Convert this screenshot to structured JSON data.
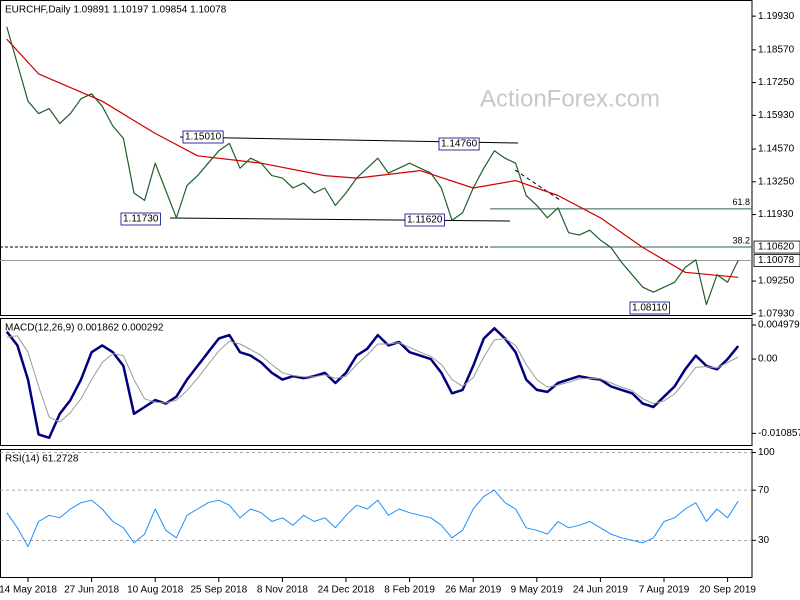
{
  "chart_data": [
    {
      "type": "line",
      "title": "EURCHF,Daily  1.09891 1.10197 1.09854 1.10078",
      "watermark": "ActionForex.com",
      "ylim": [
        1.0784,
        1.2058
      ],
      "yticks": [
        {
          "value": 1.1993,
          "label": "1.19930"
        },
        {
          "value": 1.1857,
          "label": "1.18570"
        },
        {
          "value": 1.1725,
          "label": "1.17250"
        },
        {
          "value": 1.1593,
          "label": "1.15930"
        },
        {
          "value": 1.1457,
          "label": "1.14570"
        },
        {
          "value": 1.1325,
          "label": "1.13250"
        },
        {
          "value": 1.1193,
          "label": "1.11930"
        },
        {
          "value": 1.0925,
          "label": "1.09250"
        },
        {
          "value": 1.0793,
          "label": "1.07930"
        }
      ],
      "series": [
        {
          "color": "#1f5f2a",
          "width": 1.2,
          "values": [
            1.195,
            1.18,
            1.165,
            1.16,
            1.162,
            1.156,
            1.16,
            1.166,
            1.168,
            1.163,
            1.155,
            1.15,
            1.128,
            1.125,
            1.14,
            1.129,
            1.118,
            1.131,
            1.135,
            1.14,
            1.145,
            1.148,
            1.138,
            1.142,
            1.14,
            1.135,
            1.134,
            1.13,
            1.132,
            1.128,
            1.13,
            1.123,
            1.128,
            1.134,
            1.138,
            1.142,
            1.136,
            1.138,
            1.14,
            1.138,
            1.136,
            1.13,
            1.117,
            1.12,
            1.13,
            1.138,
            1.145,
            1.142,
            1.14,
            1.127,
            1.123,
            1.118,
            1.122,
            1.112,
            1.111,
            1.113,
            1.109,
            1.106,
            1.1,
            1.095,
            1.09,
            1.088,
            1.09,
            1.092,
            1.098,
            1.101,
            1.083,
            1.095,
            1.092,
            1.1008
          ]
        },
        {
          "color": "#d00000",
          "width": 1.2,
          "x": [
            0,
            3,
            9,
            14,
            18,
            24,
            30,
            33,
            39,
            44,
            48,
            52,
            56,
            60,
            64,
            69
          ],
          "values": [
            1.19,
            1.176,
            1.165,
            1.152,
            1.143,
            1.14,
            1.135,
            1.134,
            1.137,
            1.13,
            1.133,
            1.127,
            1.118,
            1.106,
            1.096,
            1.094
          ]
        }
      ],
      "levels": [
        {
          "value": 1.1062,
          "label": "1.10620",
          "style": "dashed"
        },
        {
          "value": 1.10078,
          "label": "1.10078",
          "style": "solid"
        }
      ],
      "fib": [
        {
          "value": 1.1216,
          "label": "61.8"
        },
        {
          "value": 1.1062,
          "label": "38.2"
        }
      ],
      "annotations": [
        "1.15010",
        "1.14760",
        "1.11730",
        "1.11620",
        "1.08110"
      ]
    },
    {
      "type": "line",
      "title": "MACD(12,26,9) 0.001862 0.000292",
      "ylim": [
        -0.0127,
        0.006
      ],
      "yticks": [
        0.004979,
        {
          "value": 0,
          "label": "0.00"
        },
        -0.010857
      ],
      "series": [
        {
          "color": "#00007f",
          "width": 2.5,
          "values": [
            0.004,
            0.002,
            -0.003,
            -0.011,
            -0.0115,
            -0.008,
            -0.006,
            -0.003,
            0.001,
            0.002,
            0.001,
            -0.001,
            -0.008,
            -0.007,
            -0.006,
            -0.0065,
            -0.0055,
            -0.003,
            -0.001,
            0.001,
            0.003,
            0.0035,
            0.001,
            0.0005,
            -0.0005,
            -0.002,
            -0.003,
            -0.0025,
            -0.0028,
            -0.0025,
            -0.002,
            -0.0035,
            -0.002,
            0.0005,
            0.0015,
            0.0035,
            0.002,
            0.0025,
            0.001,
            0.0005,
            0.0,
            -0.002,
            -0.005,
            -0.0045,
            -0.001,
            0.003,
            0.0045,
            0.003,
            0.001,
            -0.003,
            -0.0045,
            -0.0048,
            -0.0035,
            -0.003,
            -0.0025,
            -0.0028,
            -0.003,
            -0.004,
            -0.0045,
            -0.005,
            -0.0065,
            -0.007,
            -0.0055,
            -0.004,
            -0.0015,
            0.0005,
            -0.001,
            -0.0015,
            0.0,
            0.0019
          ]
        },
        {
          "color": "#9a9a9a",
          "width": 1,
          "values": [
            0.0032,
            0.0034,
            0.001,
            -0.004,
            -0.0085,
            -0.0092,
            -0.0078,
            -0.0058,
            -0.003,
            -0.0005,
            0.0008,
            0.0005,
            -0.003,
            -0.0058,
            -0.0063,
            -0.0064,
            -0.006,
            -0.0046,
            -0.0028,
            -0.0008,
            0.0012,
            0.0026,
            0.0022,
            0.0014,
            0.0005,
            -0.0008,
            -0.002,
            -0.0024,
            -0.0026,
            -0.0026,
            -0.0023,
            -0.0028,
            -0.0025,
            -0.0008,
            0.0006,
            0.0022,
            0.0022,
            0.0024,
            0.0017,
            0.001,
            0.0004,
            -0.0008,
            -0.003,
            -0.004,
            -0.0027,
            0.0003,
            0.0028,
            0.003,
            0.002,
            -0.0008,
            -0.003,
            -0.0041,
            -0.0038,
            -0.0034,
            -0.0029,
            -0.0028,
            -0.0029,
            -0.0035,
            -0.0041,
            -0.0046,
            -0.0058,
            -0.0065,
            -0.0061,
            -0.0051,
            -0.0032,
            -0.0012,
            -0.0011,
            -0.0013,
            -0.0005,
            0.0003
          ]
        }
      ]
    },
    {
      "type": "line",
      "title": "RSI(14) 61.2728",
      "ylim": [
        0,
        102.8
      ],
      "yticks": [
        100,
        70,
        30
      ],
      "grid": "dashed",
      "series": [
        {
          "color": "#1e90ff",
          "width": 1,
          "values": [
            52,
            40,
            25,
            45,
            50,
            48,
            55,
            60,
            62,
            55,
            45,
            40,
            28,
            35,
            55,
            38,
            32,
            50,
            55,
            60,
            62,
            58,
            48,
            55,
            52,
            45,
            48,
            42,
            50,
            45,
            48,
            40,
            50,
            58,
            55,
            62,
            50,
            55,
            52,
            50,
            48,
            42,
            32,
            38,
            55,
            65,
            70,
            60,
            55,
            40,
            38,
            35,
            45,
            40,
            42,
            45,
            40,
            35,
            32,
            30,
            28,
            32,
            45,
            48,
            55,
            60,
            45,
            55,
            48,
            61.27
          ]
        }
      ],
      "categories": [
        null,
        null,
        "14 May 2018",
        null,
        null,
        null,
        null,
        null,
        "27 Jun 2018",
        null,
        null,
        null,
        null,
        null,
        "10 Aug 2018",
        null,
        null,
        null,
        null,
        null,
        "25 Sep 2018",
        null,
        null,
        null,
        null,
        null,
        "8 Nov 2018",
        null,
        null,
        null,
        null,
        null,
        "24 Dec 2018",
        null,
        null,
        null,
        null,
        null,
        "8 Feb 2019",
        null,
        null,
        null,
        null,
        null,
        "26 Mar 2019",
        null,
        null,
        null,
        null,
        null,
        "9 May 2019",
        null,
        null,
        null,
        null,
        null,
        "24 Jun 2019",
        null,
        null,
        null,
        null,
        null,
        "7 Aug 2019",
        null,
        null,
        null,
        null,
        null,
        "20 Sep 2019",
        null
      ]
    }
  ]
}
